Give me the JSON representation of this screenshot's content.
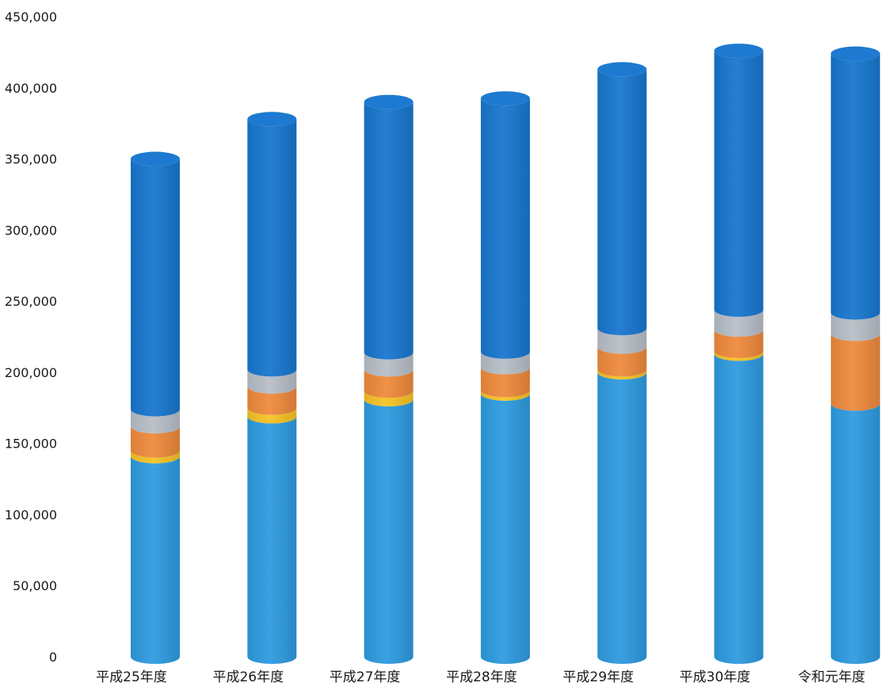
{
  "chart_data": {
    "type": "bar",
    "stacked": true,
    "style": "3d-cylinder",
    "title": "",
    "xlabel": "",
    "ylabel": "",
    "ylim": [
      0,
      450000
    ],
    "y_ticks": [
      "0",
      "50,000",
      "100,000",
      "150,000",
      "200,000",
      "250,000",
      "300,000",
      "350,000",
      "400,000",
      "450,000"
    ],
    "y_tick_values": [
      0,
      50000,
      100000,
      150000,
      200000,
      250000,
      300000,
      350000,
      400000,
      450000
    ],
    "grid": false,
    "legend": "none",
    "categories": [
      "平成25年度",
      "平成26年度",
      "平成27年度",
      "平成28年度",
      "平成29年度",
      "平成30年度",
      "令和元年度"
    ],
    "series": [
      {
        "color": "#2e9be0",
        "values": [
          141000,
          169000,
          181000,
          185000,
          200000,
          213000,
          178000
        ]
      },
      {
        "color": "#f5c326",
        "values": [
          4000,
          6000,
          6000,
          2500,
          2000,
          2000,
          0
        ]
      },
      {
        "color": "#ef8a3c",
        "values": [
          17000,
          15000,
          15000,
          16000,
          16000,
          15000,
          49000
        ]
      },
      {
        "color": "#b8bec7",
        "values": [
          12000,
          12000,
          12000,
          11000,
          13000,
          14000,
          15000
        ]
      },
      {
        "color": "#1877cf",
        "values": [
          176000,
          176000,
          176000,
          178000,
          182000,
          182000,
          182000
        ]
      }
    ]
  }
}
